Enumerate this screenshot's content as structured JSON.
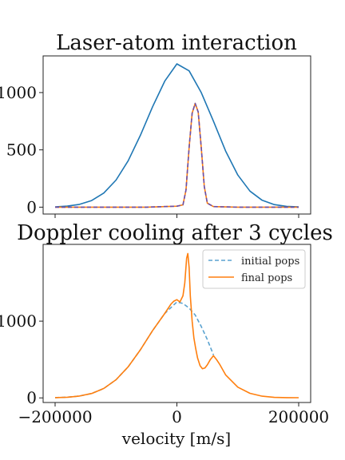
{
  "chart_data": [
    {
      "type": "line",
      "title": "Laser-atom interaction",
      "xlabel": "",
      "ylabel": "",
      "xlim": [
        -200000,
        200000
      ],
      "ylim": [
        -60,
        1320
      ],
      "yticks": [
        0,
        500,
        1000
      ],
      "ytick_labels": [
        "0",
        "500",
        "1000"
      ],
      "xticks": [
        -200000,
        0,
        200000
      ],
      "xtick_labels": [
        "",
        "",
        ""
      ],
      "grid": false,
      "legend": null,
      "series": [
        {
          "color": "#1f77b4",
          "dash": "solid",
          "x": [
            -200000,
            -180000,
            -160000,
            -140000,
            -120000,
            -100000,
            -80000,
            -60000,
            -40000,
            -20000,
            0,
            20000,
            40000,
            60000,
            80000,
            100000,
            120000,
            140000,
            160000,
            180000,
            200000
          ],
          "y": [
            3,
            9,
            24,
            58,
            123,
            236,
            405,
            627,
            875,
            1100,
            1250,
            1190,
            1000,
            750,
            490,
            280,
            140,
            60,
            22,
            7,
            2
          ]
        },
        {
          "color": "#ff7f0e",
          "dash": "solid",
          "x": [
            -200000,
            -150000,
            -100000,
            -50000,
            0,
            10000,
            15000,
            20000,
            25000,
            30000,
            35000,
            40000,
            45000,
            50000,
            60000,
            100000,
            150000,
            200000
          ],
          "y": [
            0,
            0,
            0,
            0,
            8,
            20,
            150,
            520,
            820,
            905,
            830,
            520,
            180,
            35,
            5,
            0,
            0,
            0
          ]
        },
        {
          "color": "#6a4fa8",
          "dash": "dashed",
          "x": [
            -200000,
            -150000,
            -100000,
            -50000,
            0,
            10000,
            15000,
            20000,
            25000,
            30000,
            35000,
            40000,
            45000,
            50000,
            60000,
            100000,
            150000,
            200000
          ],
          "y": [
            0,
            0,
            0,
            0,
            8,
            20,
            150,
            520,
            820,
            905,
            830,
            520,
            180,
            35,
            5,
            0,
            0,
            0
          ]
        }
      ]
    },
    {
      "type": "line",
      "title": "Doppler cooling after 3 cycles",
      "xlabel": "velocity [m/s]",
      "ylabel": "",
      "xlim": [
        -200000,
        200000
      ],
      "ylim": [
        -60,
        2000
      ],
      "yticks": [
        0,
        1000
      ],
      "ytick_labels": [
        "0",
        "1000"
      ],
      "xticks": [
        -200000,
        0,
        200000
      ],
      "xtick_labels": [
        "−200000",
        "0",
        "200000"
      ],
      "grid": false,
      "legend": "top-right",
      "series": [
        {
          "name": "initial pops",
          "color": "#5aa2d0",
          "dash": "dashed",
          "x": [
            -200000,
            -180000,
            -160000,
            -140000,
            -120000,
            -100000,
            -80000,
            -60000,
            -40000,
            -20000,
            0,
            10000,
            20000,
            30000,
            40000,
            50000,
            60000
          ],
          "y": [
            3,
            9,
            24,
            58,
            123,
            236,
            405,
            627,
            875,
            1100,
            1250,
            1230,
            1170,
            1080,
            930,
            760,
            560
          ]
        },
        {
          "name": "final pops",
          "color": "#ff7f0e",
          "dash": "solid",
          "x": [
            -200000,
            -180000,
            -160000,
            -140000,
            -120000,
            -100000,
            -80000,
            -60000,
            -40000,
            -20000,
            -10000,
            -5000,
            0,
            5000,
            10000,
            13000,
            16000,
            18000,
            20000,
            22000,
            25000,
            28000,
            31000,
            34000,
            38000,
            42000,
            46000,
            50000,
            55000,
            60000,
            65000,
            70000,
            80000,
            100000,
            120000,
            140000,
            160000,
            180000,
            200000
          ],
          "y": [
            3,
            9,
            24,
            58,
            123,
            236,
            405,
            627,
            875,
            1100,
            1220,
            1260,
            1280,
            1250,
            1330,
            1500,
            1820,
            1880,
            1700,
            1330,
            1000,
            780,
            640,
            520,
            420,
            380,
            390,
            430,
            500,
            550,
            500,
            440,
            300,
            140,
            60,
            22,
            7,
            3,
            2
          ]
        }
      ]
    }
  ]
}
